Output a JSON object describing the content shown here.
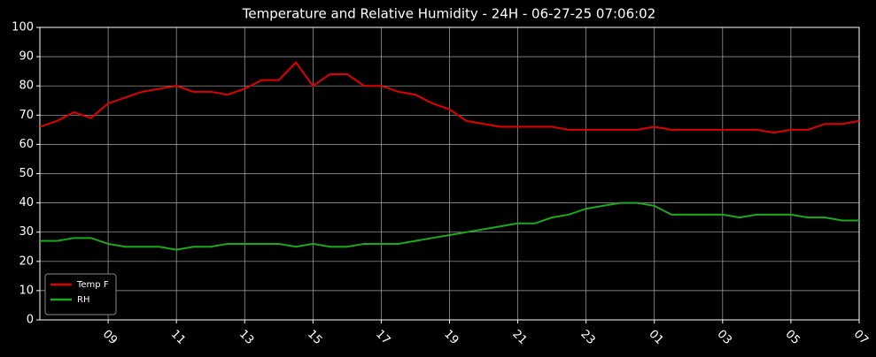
{
  "chart_data": {
    "type": "line",
    "title": "Temperature and Relative Humidity - 24H - 06-27-25 07:06:02",
    "categories": [
      null,
      null,
      null,
      null,
      "09",
      null,
      null,
      null,
      "11",
      null,
      null,
      null,
      "13",
      null,
      null,
      null,
      "15",
      null,
      null,
      null,
      "17",
      null,
      null,
      null,
      "19",
      null,
      null,
      null,
      "21",
      null,
      null,
      null,
      "23",
      null,
      null,
      null,
      "01",
      null,
      null,
      null,
      "03",
      null,
      null,
      null,
      "05",
      null,
      null,
      null,
      "07"
    ],
    "series": [
      {
        "name": "Temp F",
        "color": "#e00000",
        "values": [
          66,
          68,
          71,
          69,
          74,
          76,
          78,
          79,
          80,
          78,
          78,
          77,
          79,
          82,
          82,
          88,
          80,
          84,
          84,
          80,
          80,
          78,
          77,
          74,
          72,
          68,
          67,
          66,
          66,
          66,
          66,
          65,
          65,
          65,
          65,
          65,
          66,
          65,
          65,
          65,
          65,
          65,
          65,
          64,
          65,
          65,
          67,
          67,
          68
        ]
      },
      {
        "name": "RH",
        "color": "#1aaa1a",
        "values": [
          27,
          27,
          28,
          28,
          26,
          25,
          25,
          25,
          24,
          25,
          25,
          26,
          26,
          26,
          26,
          25,
          26,
          25,
          25,
          26,
          26,
          26,
          27,
          28,
          29,
          30,
          31,
          32,
          33,
          33,
          35,
          36,
          38,
          39,
          40,
          40,
          39,
          36,
          36,
          36,
          36,
          35,
          36,
          36,
          36,
          35,
          35,
          34,
          34
        ]
      }
    ],
    "ylim": [
      0,
      100
    ],
    "yticks": [
      0,
      10,
      20,
      30,
      40,
      50,
      60,
      70,
      80,
      90,
      100
    ],
    "grid": true,
    "legend": "lower left"
  }
}
